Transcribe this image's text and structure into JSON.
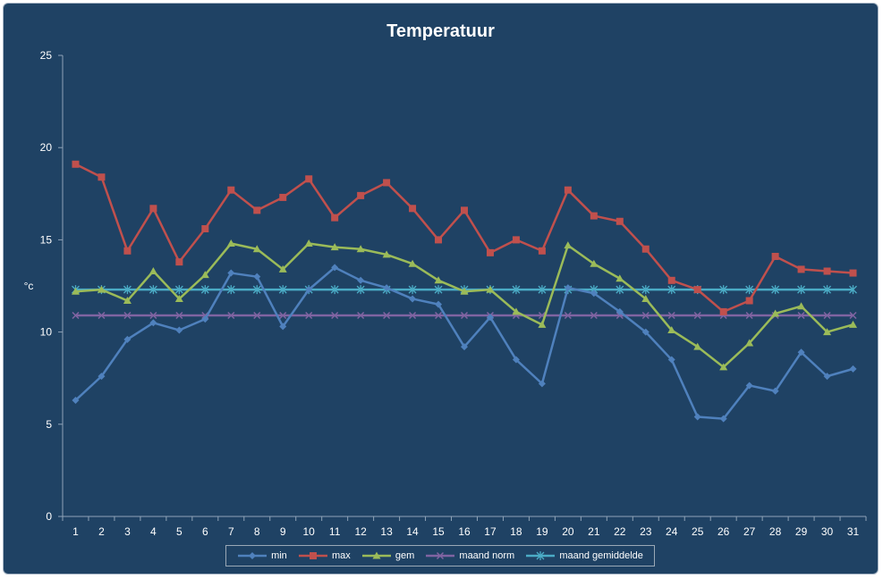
{
  "chart_data": {
    "type": "line",
    "title": "Temperatuur",
    "xlabel": "",
    "ylabel": "°c",
    "ylim": [
      0,
      25
    ],
    "yticks": [
      "0",
      "5",
      "10",
      "15",
      "20",
      "25"
    ],
    "grid": false,
    "legend_position": "bottom",
    "categories": [
      "1",
      "2",
      "3",
      "4",
      "5",
      "6",
      "7",
      "8",
      "9",
      "10",
      "11",
      "12",
      "13",
      "14",
      "15",
      "16",
      "17",
      "18",
      "19",
      "20",
      "21",
      "22",
      "23",
      "24",
      "25",
      "26",
      "27",
      "28",
      "29",
      "30",
      "31"
    ],
    "series": [
      {
        "name": "min",
        "color": "#4f81bd",
        "marker": "diamond",
        "values": [
          6.3,
          7.6,
          9.6,
          10.5,
          10.1,
          10.7,
          13.2,
          13.0,
          10.3,
          12.3,
          13.5,
          12.8,
          12.4,
          11.8,
          11.5,
          9.2,
          10.8,
          8.5,
          7.2,
          12.4,
          12.1,
          11.1,
          10.0,
          8.5,
          5.4,
          5.3,
          7.1,
          6.8,
          8.9,
          7.6,
          8.0
        ]
      },
      {
        "name": "max",
        "color": "#c0504d",
        "marker": "square",
        "values": [
          19.1,
          18.4,
          14.4,
          16.7,
          13.8,
          15.6,
          17.7,
          16.6,
          17.3,
          18.3,
          16.2,
          17.4,
          18.1,
          16.7,
          15.0,
          16.6,
          14.3,
          15.0,
          14.4,
          17.7,
          16.3,
          16.0,
          14.5,
          12.8,
          12.3,
          11.1,
          11.7,
          14.1,
          13.4,
          13.3,
          13.2
        ]
      },
      {
        "name": "gem",
        "color": "#9bbb59",
        "marker": "triangle",
        "values": [
          12.2,
          12.3,
          11.7,
          13.3,
          11.8,
          13.1,
          14.8,
          14.5,
          13.4,
          14.8,
          14.6,
          14.5,
          14.2,
          13.7,
          12.8,
          12.2,
          12.3,
          11.1,
          10.4,
          14.7,
          13.7,
          12.9,
          11.8,
          10.1,
          9.2,
          8.1,
          9.4,
          11.0,
          11.4,
          10.0,
          10.4
        ]
      },
      {
        "name": "maand norm",
        "color": "#8064a2",
        "marker": "x",
        "values": [
          10.9,
          10.9,
          10.9,
          10.9,
          10.9,
          10.9,
          10.9,
          10.9,
          10.9,
          10.9,
          10.9,
          10.9,
          10.9,
          10.9,
          10.9,
          10.9,
          10.9,
          10.9,
          10.9,
          10.9,
          10.9,
          10.9,
          10.9,
          10.9,
          10.9,
          10.9,
          10.9,
          10.9,
          10.9,
          10.9,
          10.9
        ]
      },
      {
        "name": "maand gemiddelde",
        "color": "#4bacc6",
        "marker": "star",
        "values": [
          12.3,
          12.3,
          12.3,
          12.3,
          12.3,
          12.3,
          12.3,
          12.3,
          12.3,
          12.3,
          12.3,
          12.3,
          12.3,
          12.3,
          12.3,
          12.3,
          12.3,
          12.3,
          12.3,
          12.3,
          12.3,
          12.3,
          12.3,
          12.3,
          12.3,
          12.3,
          12.3,
          12.3,
          12.3,
          12.3,
          12.3
        ]
      }
    ]
  }
}
